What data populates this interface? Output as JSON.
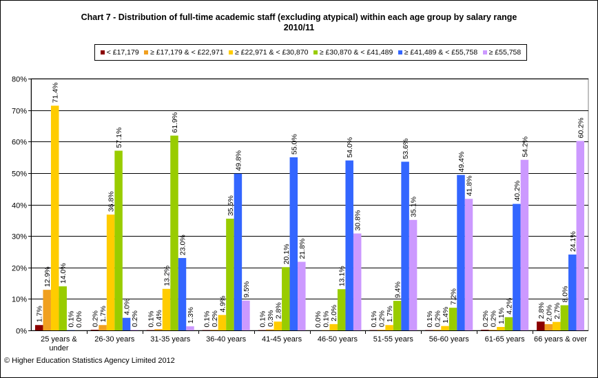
{
  "chart_data": {
    "type": "bar",
    "title": "Chart 7 - Distribution  of full-time academic staff (excluding atypical) within each age group by salary range",
    "subtitle": "2010/11",
    "categories": [
      "25 years & under",
      "26-30 years",
      "31-35 years",
      "36-40 years",
      "41-45 years",
      "46-50 years",
      "51-55 years",
      "56-60 years",
      "61-65 years",
      "66 years & over"
    ],
    "category_lines": [
      [
        "25 years &",
        "under"
      ],
      [
        "26-30 years"
      ],
      [
        "31-35 years"
      ],
      [
        "36-40 years"
      ],
      [
        "41-45 years"
      ],
      [
        "46-50 years"
      ],
      [
        "51-55 years"
      ],
      [
        "56-60 years"
      ],
      [
        "61-65 years"
      ],
      [
        "66 years & over"
      ]
    ],
    "series": [
      {
        "name": "< £17,179",
        "color": "#8B0000",
        "values": [
          1.7,
          0.2,
          0.1,
          0.1,
          0.1,
          0.0,
          0.1,
          0.1,
          0.2,
          2.8
        ]
      },
      {
        "name": "≥ £17,179 & < £22,971",
        "color": "#F0A020",
        "values": [
          12.9,
          1.7,
          0.4,
          0.2,
          0.3,
          0.1,
          0.2,
          0.2,
          0.2,
          2.0
        ]
      },
      {
        "name": "≥ £22,971 & < £30,870",
        "color": "#FFCC00",
        "values": [
          71.4,
          36.8,
          13.2,
          4.9,
          2.8,
          2.0,
          1.7,
          1.4,
          1.1,
          2.7
        ]
      },
      {
        "name": "≥ £30,870 & < £41,489",
        "color": "#99CC00",
        "values": [
          14.0,
          57.1,
          61.9,
          35.5,
          20.1,
          13.1,
          9.4,
          7.2,
          4.2,
          8.0
        ]
      },
      {
        "name": "≥ £41,489 & < £55,758",
        "color": "#3366FF",
        "values": [
          0.1,
          4.0,
          23.0,
          49.8,
          55.0,
          54.0,
          53.6,
          49.4,
          40.2,
          24.1
        ]
      },
      {
        "name": "≥ £55,758",
        "color": "#CC99FF",
        "values": [
          0.0,
          0.2,
          1.3,
          9.5,
          21.8,
          30.8,
          35.1,
          41.8,
          54.2,
          60.2
        ]
      }
    ],
    "ylim": [
      0,
      80
    ],
    "yticks": [
      "0%",
      "10%",
      "20%",
      "30%",
      "40%",
      "50%",
      "60%",
      "70%",
      "80%"
    ],
    "xlabel": "",
    "ylabel": "",
    "grid": true,
    "legend_position": "top"
  },
  "footer": {
    "copyright": "© Higher Education Statistics Agency Limited 2012"
  }
}
